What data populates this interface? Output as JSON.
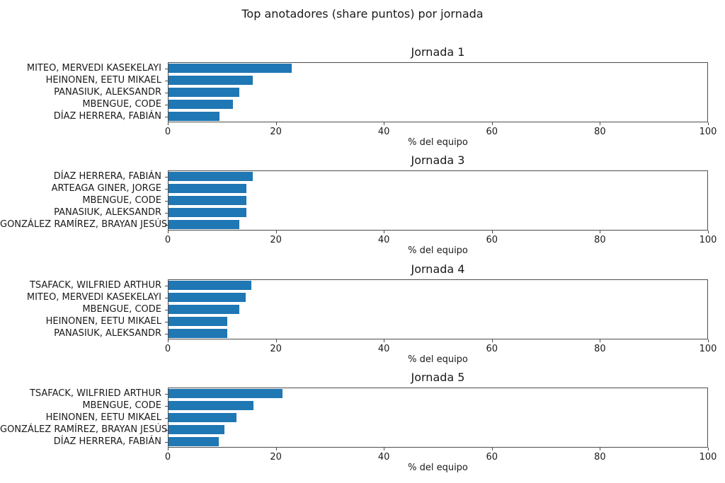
{
  "figure": {
    "title": "Top anotadores (share puntos) por jornada"
  },
  "colors": {
    "bar": "#1f77b4",
    "spine": "#4d4d4d",
    "text": "#1a1a1a"
  },
  "chart_data": [
    {
      "type": "bar",
      "orientation": "horizontal",
      "title": "Jornada 1",
      "categories": [
        "MITEO, MERVEDI KASEKELAYI",
        "HEINONEN, EETU MIKAEL",
        "PANASIUK, ALEKSANDR",
        "MBENGUE, CODE",
        "DÍAZ HERRERA, FABIÁN"
      ],
      "values": [
        22.8,
        15.6,
        13.1,
        11.9,
        9.5
      ],
      "xlabel": "% del equipo",
      "xlim": [
        0,
        100
      ],
      "xticks": [
        0,
        20,
        40,
        60,
        80,
        100
      ],
      "grid": false,
      "legend": null
    },
    {
      "type": "bar",
      "orientation": "horizontal",
      "title": "Jornada 3",
      "categories": [
        "DÍAZ HERRERA, FABIÁN",
        "ARTEAGA GINER, JORGE",
        "MBENGUE, CODE",
        "PANASIUK, ALEKSANDR",
        "GONZÁLEZ RAMÍREZ, BRAYAN JESÚS"
      ],
      "values": [
        15.6,
        14.4,
        14.4,
        14.4,
        13.1
      ],
      "xlabel": "% del equipo",
      "xlim": [
        0,
        100
      ],
      "xticks": [
        0,
        20,
        40,
        60,
        80,
        100
      ],
      "grid": false,
      "legend": null
    },
    {
      "type": "bar",
      "orientation": "horizontal",
      "title": "Jornada 4",
      "categories": [
        "TSAFACK, WILFRIED ARTHUR",
        "MITEO, MERVEDI KASEKELAYI",
        "MBENGUE, CODE",
        "HEINONEN, EETU MIKAEL",
        "PANASIUK, ALEKSANDR"
      ],
      "values": [
        15.3,
        14.3,
        13.1,
        10.9,
        10.9
      ],
      "xlabel": "% del equipo",
      "xlim": [
        0,
        100
      ],
      "xticks": [
        0,
        20,
        40,
        60,
        80,
        100
      ],
      "grid": false,
      "legend": null
    },
    {
      "type": "bar",
      "orientation": "horizontal",
      "title": "Jornada 5",
      "categories": [
        "TSAFACK, WILFRIED ARTHUR",
        "MBENGUE, CODE",
        "HEINONEN, EETU MIKAEL",
        "GONZÁLEZ RAMÍREZ, BRAYAN JESÚS",
        "DÍAZ HERRERA, FABIÁN"
      ],
      "values": [
        21.1,
        15.7,
        12.6,
        10.4,
        9.3
      ],
      "xlabel": "% del equipo",
      "xlim": [
        0,
        100
      ],
      "xticks": [
        0,
        20,
        40,
        60,
        80,
        100
      ],
      "grid": false,
      "legend": null
    }
  ]
}
